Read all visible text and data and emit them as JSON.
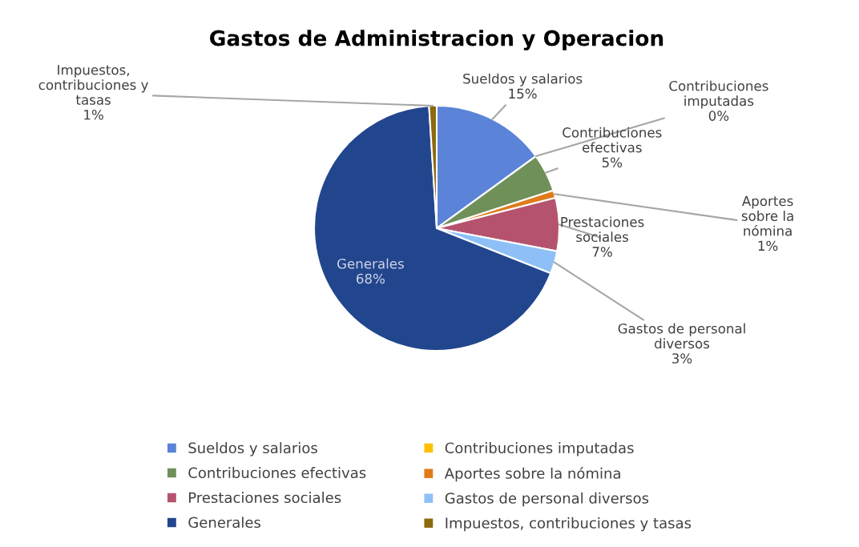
{
  "chart_data": {
    "type": "pie",
    "title": "Gastos de Administracion y Operacion",
    "categories": [
      "Sueldos y salarios",
      "Contribuciones imputadas",
      "Contribuciones efectivas",
      "Aportes sobre la nómina",
      "Prestaciones sociales",
      "Gastos de personal diversos",
      "Generales",
      "Impuestos, contribuciones y tasas"
    ],
    "values": [
      15,
      0,
      5,
      1,
      7,
      3,
      68,
      1
    ],
    "value_labels": [
      "15%",
      "0%",
      "5%",
      "1%",
      "7%",
      "3%",
      "68%",
      "1%"
    ],
    "colors": [
      "#5b83d8",
      "#ffc000",
      "#70905a",
      "#e07b1a",
      "#b5536f",
      "#8ec0f7",
      "#22468e",
      "#8c6a0c"
    ],
    "legend": "bottom"
  }
}
